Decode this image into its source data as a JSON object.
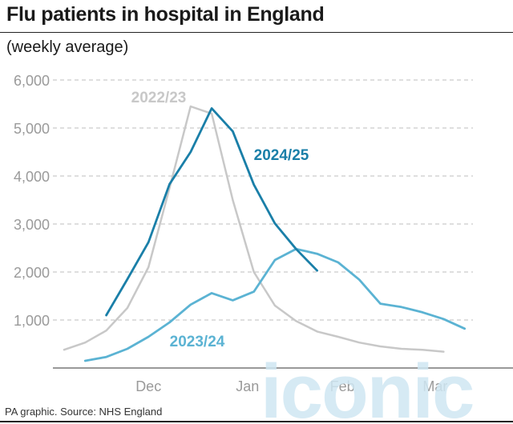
{
  "header": {
    "title": "Flu patients in hospital in England",
    "subtitle": "(weekly average)"
  },
  "footer": {
    "source": "PA graphic. Source: NHS England"
  },
  "watermark": {
    "text": "iconic",
    "color": "#cfe6f2"
  },
  "chart_data": {
    "type": "line",
    "title": "",
    "xlabel": "",
    "ylabel": "",
    "x_ticks": [
      "Dec",
      "Jan",
      "Feb",
      "Mar"
    ],
    "y_ticks": [
      "6,000",
      "5,000",
      "4,000",
      "3,000",
      "2,000",
      "1,000"
    ],
    "ylim": [
      0,
      6000
    ],
    "grid": "horizontal dashed",
    "series": [
      {
        "name": "2022/23",
        "color": "#c8c8c8",
        "x": [
          0,
          1,
          2,
          3,
          4,
          5,
          6,
          7,
          8,
          9,
          10,
          11,
          12,
          13,
          14,
          15,
          16,
          17,
          18
        ],
        "values": [
          380,
          530,
          780,
          1250,
          2100,
          3750,
          5450,
          5300,
          3500,
          2000,
          1300,
          980,
          760,
          650,
          530,
          450,
          400,
          380,
          340
        ]
      },
      {
        "name": "2024/25",
        "color": "#1a7fa8",
        "x": [
          2,
          3,
          4,
          5,
          6,
          7,
          8,
          9,
          10,
          11,
          12
        ],
        "values": [
          1100,
          1850,
          2620,
          3830,
          4500,
          5410,
          4930,
          3820,
          3010,
          2480,
          2030
        ]
      },
      {
        "name": "2023/24",
        "color": "#5bb3d3",
        "x": [
          1,
          2,
          3,
          4,
          5,
          6,
          7,
          8,
          9,
          10,
          11,
          12,
          13,
          14,
          15,
          16,
          17,
          18,
          19
        ],
        "values": [
          150,
          230,
          400,
          650,
          950,
          1320,
          1560,
          1410,
          1590,
          2250,
          2480,
          2380,
          2200,
          1840,
          1340,
          1270,
          1160,
          1020,
          820
        ]
      }
    ]
  }
}
